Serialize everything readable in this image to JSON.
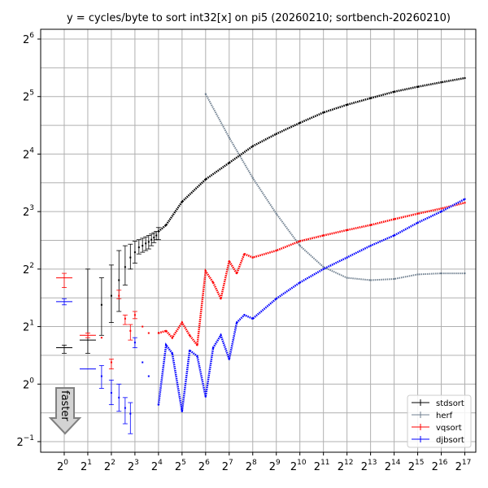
{
  "chart_data": {
    "type": "scatter",
    "title": "y = cycles/byte to sort int32[x] on pi5 (20260210; sortbench-20260210)",
    "x_scale": "log2",
    "y_scale": "log2",
    "xlim": [
      0.5,
      181000
    ],
    "ylim": [
      0.44,
      72
    ],
    "grid": true,
    "legend_position": "bottom-right",
    "x_ticks": [
      {
        "base": "2",
        "exp": "0"
      },
      {
        "base": "2",
        "exp": "1"
      },
      {
        "base": "2",
        "exp": "2"
      },
      {
        "base": "2",
        "exp": "3"
      },
      {
        "base": "2",
        "exp": "4"
      },
      {
        "base": "2",
        "exp": "5"
      },
      {
        "base": "2",
        "exp": "6"
      },
      {
        "base": "2",
        "exp": "7"
      },
      {
        "base": "2",
        "exp": "8"
      },
      {
        "base": "2",
        "exp": "9"
      },
      {
        "base": "2",
        "exp": "10"
      },
      {
        "base": "2",
        "exp": "11"
      },
      {
        "base": "2",
        "exp": "12"
      },
      {
        "base": "2",
        "exp": "13"
      },
      {
        "base": "2",
        "exp": "14"
      },
      {
        "base": "2",
        "exp": "15"
      },
      {
        "base": "2",
        "exp": "16"
      },
      {
        "base": "2",
        "exp": "17"
      }
    ],
    "y_ticks": [
      {
        "base": "2",
        "exp": "−1"
      },
      {
        "base": "2",
        "exp": "0"
      },
      {
        "base": "2",
        "exp": "1"
      },
      {
        "base": "2",
        "exp": "2"
      },
      {
        "base": "2",
        "exp": "3"
      },
      {
        "base": "2",
        "exp": "4"
      },
      {
        "base": "2",
        "exp": "5"
      },
      {
        "base": "2",
        "exp": "6"
      }
    ],
    "annotation": {
      "text": "faster"
    },
    "series": [
      {
        "name": "stdsort",
        "color": "#000000",
        "points": [
          {
            "x": 1,
            "y": 1.55,
            "lo": 1.45,
            "hi": 1.6
          },
          {
            "x": 2,
            "y": 1.7,
            "lo": 1.45,
            "hi": 4.0
          },
          {
            "x": 3,
            "y": 2.6,
            "lo": 1.8,
            "hi": 3.6
          },
          {
            "x": 4,
            "y": 2.9,
            "lo": 2.1,
            "hi": 4.2
          },
          {
            "x": 5,
            "y": 3.5,
            "lo": 2.4,
            "hi": 5.0
          },
          {
            "x": 6,
            "y": 4.1,
            "lo": 3.3,
            "hi": 5.3
          },
          {
            "x": 7,
            "y": 4.6,
            "lo": 4.0,
            "hi": 5.4
          },
          {
            "x": 8,
            "y": 4.9,
            "lo": 4.3,
            "hi": 5.6
          },
          {
            "x": 9,
            "y": 5.2,
            "lo": 4.8,
            "hi": 5.7
          },
          {
            "x": 10,
            "y": 5.3,
            "lo": 4.9,
            "hi": 5.8
          },
          {
            "x": 11,
            "y": 5.45,
            "lo": 5.0,
            "hi": 5.9
          },
          {
            "x": 12,
            "y": 5.55,
            "lo": 5.1,
            "hi": 6.0
          },
          {
            "x": 13,
            "y": 5.7,
            "lo": 5.3,
            "hi": 6.1
          },
          {
            "x": 14,
            "y": 5.85,
            "lo": 5.5,
            "hi": 6.2
          },
          {
            "x": 15,
            "y": 6.0,
            "lo": 5.7,
            "hi": 6.3
          },
          {
            "x": 16,
            "y": 6.3,
            "lo": 5.7,
            "hi": 6.6
          },
          {
            "x": 20,
            "y": 6.8
          },
          {
            "x": 32,
            "y": 9.0
          },
          {
            "x": 64,
            "y": 11.8
          },
          {
            "x": 128,
            "y": 14.4
          },
          {
            "x": 256,
            "y": 17.6
          },
          {
            "x": 512,
            "y": 20.4
          },
          {
            "x": 1024,
            "y": 23.3
          },
          {
            "x": 2048,
            "y": 26.4
          },
          {
            "x": 4096,
            "y": 29.0
          },
          {
            "x": 8192,
            "y": 31.4
          },
          {
            "x": 16384,
            "y": 33.9
          },
          {
            "x": 32768,
            "y": 36.0
          },
          {
            "x": 65536,
            "y": 38.0
          },
          {
            "x": 131072,
            "y": 40.0
          }
        ]
      },
      {
        "name": "herf",
        "color": "#708090",
        "points": [
          {
            "x": 64,
            "y": 33.0
          },
          {
            "x": 128,
            "y": 19.5
          },
          {
            "x": 256,
            "y": 12.0
          },
          {
            "x": 512,
            "y": 7.8
          },
          {
            "x": 1024,
            "y": 5.3
          },
          {
            "x": 2048,
            "y": 4.1
          },
          {
            "x": 4096,
            "y": 3.6
          },
          {
            "x": 8192,
            "y": 3.5
          },
          {
            "x": 16384,
            "y": 3.55
          },
          {
            "x": 32768,
            "y": 3.75
          },
          {
            "x": 65536,
            "y": 3.8
          },
          {
            "x": 131072,
            "y": 3.8
          }
        ]
      },
      {
        "name": "vqsort",
        "color": "#ff0000",
        "points": [
          {
            "x": 1,
            "y": 3.6,
            "lo": 3.2,
            "hi": 3.8
          },
          {
            "x": 2,
            "y": 1.8,
            "lo": 1.75,
            "hi": 1.85
          },
          {
            "x": 3,
            "y": 1.75
          },
          {
            "x": 4,
            "y": 1.3,
            "lo": 1.2,
            "hi": 1.35
          },
          {
            "x": 5,
            "y": 2.9,
            "lo": 2.8,
            "hi": 3.1
          },
          {
            "x": 6,
            "y": 2.2,
            "lo": 2.05,
            "hi": 2.3
          },
          {
            "x": 7,
            "y": 1.9,
            "lo": 1.7,
            "hi": 2.05
          },
          {
            "x": 8,
            "y": 2.3,
            "lo": 2.2,
            "hi": 2.4
          },
          {
            "x": 10,
            "y": 2.0
          },
          {
            "x": 12,
            "y": 1.85
          },
          {
            "x": 16,
            "y": 1.85
          },
          {
            "x": 20,
            "y": 1.9
          },
          {
            "x": 24,
            "y": 1.75
          },
          {
            "x": 32,
            "y": 2.1
          },
          {
            "x": 40,
            "y": 1.8
          },
          {
            "x": 50,
            "y": 1.6
          },
          {
            "x": 64,
            "y": 3.9
          },
          {
            "x": 80,
            "y": 3.4
          },
          {
            "x": 100,
            "y": 2.8
          },
          {
            "x": 128,
            "y": 4.4
          },
          {
            "x": 160,
            "y": 3.8
          },
          {
            "x": 200,
            "y": 4.8
          },
          {
            "x": 256,
            "y": 4.6
          },
          {
            "x": 512,
            "y": 5.0
          },
          {
            "x": 1024,
            "y": 5.6
          },
          {
            "x": 2048,
            "y": 6.0
          },
          {
            "x": 4096,
            "y": 6.4
          },
          {
            "x": 8192,
            "y": 6.8
          },
          {
            "x": 16384,
            "y": 7.3
          },
          {
            "x": 32768,
            "y": 7.8
          },
          {
            "x": 65536,
            "y": 8.3
          },
          {
            "x": 131072,
            "y": 8.9
          }
        ]
      },
      {
        "name": "djbsort",
        "color": "#0000ff",
        "points": [
          {
            "x": 1,
            "y": 2.7,
            "lo": 2.6,
            "hi": 2.8
          },
          {
            "x": 2,
            "y": 1.2
          },
          {
            "x": 3,
            "y": 1.1,
            "lo": 0.95,
            "hi": 1.25
          },
          {
            "x": 4,
            "y": 0.9,
            "lo": 0.78,
            "hi": 1.05
          },
          {
            "x": 5,
            "y": 0.85,
            "lo": 0.72,
            "hi": 1.0
          },
          {
            "x": 6,
            "y": 0.75,
            "lo": 0.62,
            "hi": 0.85
          },
          {
            "x": 7,
            "y": 0.7,
            "lo": 0.55,
            "hi": 0.8
          },
          {
            "x": 8,
            "y": 1.65,
            "lo": 1.55,
            "hi": 1.75
          },
          {
            "x": 10,
            "y": 1.3
          },
          {
            "x": 12,
            "y": 1.1
          },
          {
            "x": 16,
            "y": 0.78
          },
          {
            "x": 20,
            "y": 1.6
          },
          {
            "x": 24,
            "y": 1.45
          },
          {
            "x": 32,
            "y": 0.72
          },
          {
            "x": 40,
            "y": 1.5
          },
          {
            "x": 50,
            "y": 1.4
          },
          {
            "x": 64,
            "y": 0.86
          },
          {
            "x": 80,
            "y": 1.55
          },
          {
            "x": 100,
            "y": 1.8
          },
          {
            "x": 128,
            "y": 1.35
          },
          {
            "x": 160,
            "y": 2.1
          },
          {
            "x": 200,
            "y": 2.3
          },
          {
            "x": 256,
            "y": 2.2
          },
          {
            "x": 512,
            "y": 2.8
          },
          {
            "x": 1024,
            "y": 3.4
          },
          {
            "x": 2048,
            "y": 4.0
          },
          {
            "x": 4096,
            "y": 4.6
          },
          {
            "x": 8192,
            "y": 5.3
          },
          {
            "x": 16384,
            "y": 6.0
          },
          {
            "x": 32768,
            "y": 7.0
          },
          {
            "x": 65536,
            "y": 8.0
          },
          {
            "x": 131072,
            "y": 9.3
          }
        ]
      }
    ]
  }
}
